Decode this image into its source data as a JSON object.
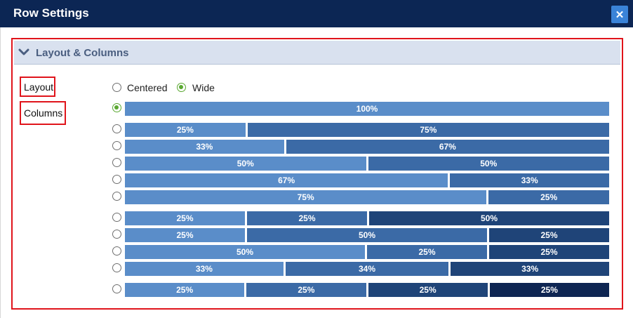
{
  "window": {
    "title": "Row Settings",
    "close_icon": "close-icon"
  },
  "section": {
    "title": "Layout & Columns",
    "icon": "chevron-down-icon"
  },
  "labels": {
    "layout": "Layout",
    "columns": "Columns"
  },
  "layout_options": [
    {
      "label": "Centered",
      "selected": false
    },
    {
      "label": "Wide",
      "selected": true
    }
  ],
  "column_options": [
    {
      "selected": true,
      "segments": [
        "100%"
      ]
    },
    {
      "selected": false,
      "segments": [
        "25%",
        "75%"
      ]
    },
    {
      "selected": false,
      "segments": [
        "33%",
        "67%"
      ]
    },
    {
      "selected": false,
      "segments": [
        "50%",
        "50%"
      ]
    },
    {
      "selected": false,
      "segments": [
        "67%",
        "33%"
      ]
    },
    {
      "selected": false,
      "segments": [
        "75%",
        "25%"
      ]
    },
    {
      "selected": false,
      "segments": [
        "25%",
        "25%",
        "50%"
      ]
    },
    {
      "selected": false,
      "segments": [
        "25%",
        "50%",
        "25%"
      ]
    },
    {
      "selected": false,
      "segments": [
        "50%",
        "25%",
        "25%"
      ]
    },
    {
      "selected": false,
      "segments": [
        "33%",
        "34%",
        "33%"
      ]
    },
    {
      "selected": false,
      "segments": [
        "25%",
        "25%",
        "25%",
        "25%"
      ]
    }
  ],
  "colors": {
    "titlebar": "#0c2654",
    "accent_border": "#e0141b",
    "radio_selected": "#5aa831",
    "seg1": "#5a8dc9",
    "seg2": "#3b6aa6",
    "seg3": "#1f4478",
    "seg4": "#0e2552"
  }
}
